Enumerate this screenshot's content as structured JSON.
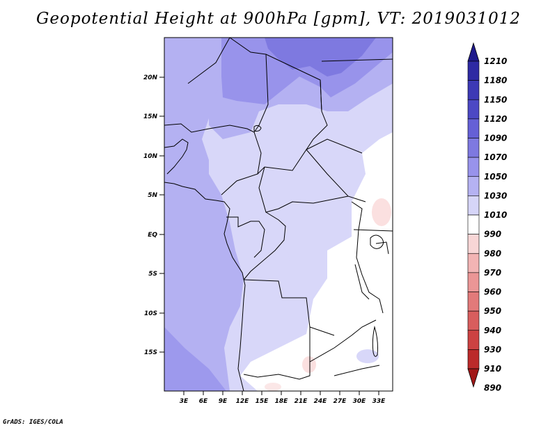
{
  "title": "Geopotential Height at 900hPa [gpm], VT: 2019031012",
  "footer": "GrADS: IGES/COLA",
  "map": {
    "lat_labels": [
      "20N",
      "15N",
      "10N",
      "5N",
      "EQ",
      "5S",
      "10S",
      "15S"
    ],
    "lon_labels": [
      "3E",
      "6E",
      "9E",
      "12E",
      "15E",
      "18E",
      "21E",
      "24E",
      "27E",
      "30E",
      "33E"
    ]
  },
  "colorbar": {
    "levels": [
      "1210",
      "1180",
      "1150",
      "1120",
      "1090",
      "1070",
      "1050",
      "1030",
      "1010",
      "990",
      "980",
      "970",
      "960",
      "950",
      "940",
      "930",
      "910",
      "890"
    ],
    "colors": [
      "#1f1a8c",
      "#2e2aa3",
      "#3d39b5",
      "#4c48c4",
      "#6560d6",
      "#7e79e0",
      "#9893eb",
      "#b5b2f2",
      "#d6d5f8",
      "#ffffff",
      "#f8d6d6",
      "#f2b4b4",
      "#eb9696",
      "#e27a7a",
      "#d85e5e",
      "#cc4242",
      "#bb2a2a",
      "#a11818"
    ]
  }
}
